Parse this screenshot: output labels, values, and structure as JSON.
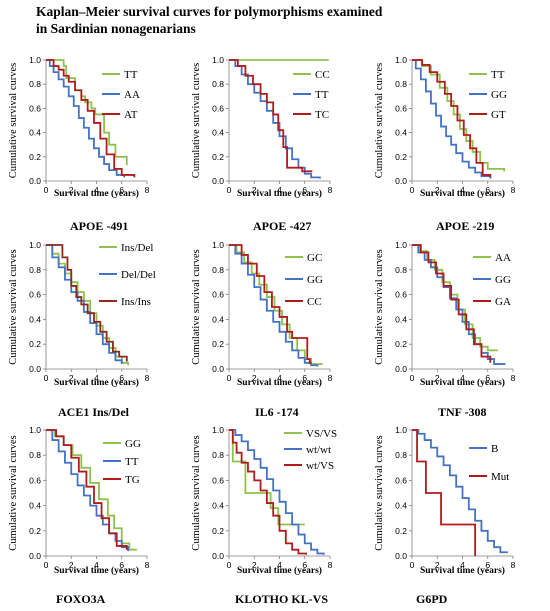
{
  "title_line1": "Kaplan–Meier survival curves for polymorphisms examined",
  "title_line2": "in Sardinian nonagenarians",
  "chart_data": [
    {
      "type": "line",
      "caption": "APOE -491",
      "xlabel": "Survival time (years)",
      "ylabel": "Cumulative survival curves",
      "xlim": [
        0,
        8
      ],
      "ylim": [
        0,
        1
      ],
      "xticks": [
        0,
        2,
        4,
        6,
        8
      ],
      "yticks": [
        0,
        0.2,
        0.4,
        0.6,
        0.8,
        1
      ],
      "series": [
        {
          "name": "TT",
          "color": "#8fc24c",
          "x": [
            0,
            1.4,
            1.6,
            2.3,
            2.8,
            3.1,
            3.6,
            3.9,
            4.6,
            5.0,
            5.5,
            6.4
          ],
          "y": [
            1,
            0.95,
            0.85,
            0.75,
            0.7,
            0.65,
            0.6,
            0.55,
            0.4,
            0.3,
            0.2,
            0.13
          ]
        },
        {
          "name": "AA",
          "color": "#4472c4",
          "x": [
            0,
            0.3,
            0.6,
            1.0,
            1.4,
            1.8,
            2.2,
            2.6,
            3.0,
            3.4,
            3.8,
            4.2,
            4.6,
            5.0,
            5.6,
            6.2
          ],
          "y": [
            1,
            0.95,
            0.9,
            0.84,
            0.78,
            0.7,
            0.62,
            0.52,
            0.44,
            0.35,
            0.27,
            0.2,
            0.14,
            0.09,
            0.05,
            0.03
          ]
        },
        {
          "name": "AT",
          "color": "#b01c1c",
          "x": [
            0,
            0.6,
            1.0,
            1.4,
            1.8,
            2.3,
            2.8,
            3.3,
            3.8,
            4.3,
            4.8,
            5.4,
            6.0,
            7.0
          ],
          "y": [
            1,
            0.95,
            0.92,
            0.87,
            0.82,
            0.75,
            0.67,
            0.58,
            0.48,
            0.35,
            0.22,
            0.1,
            0.05,
            0.03
          ]
        }
      ]
    },
    {
      "type": "line",
      "caption": "APOE -427",
      "xlabel": "Survival time (years)",
      "ylabel": "Cumulative survival curves",
      "xlim": [
        0,
        8
      ],
      "ylim": [
        0,
        1
      ],
      "xticks": [
        0,
        2,
        4,
        6,
        8
      ],
      "yticks": [
        0,
        0.2,
        0.4,
        0.6,
        0.8,
        1
      ],
      "series": [
        {
          "name": "CC",
          "color": "#8fc24c",
          "x": [
            0,
            7.9
          ],
          "y": [
            1,
            1
          ]
        },
        {
          "name": "TT",
          "color": "#4472c4",
          "x": [
            0,
            0.5,
            1.0,
            1.5,
            2.0,
            2.5,
            3.0,
            3.5,
            4.0,
            4.5,
            5.0,
            5.5,
            6.0,
            6.5,
            7.2
          ],
          "y": [
            1,
            0.95,
            0.88,
            0.8,
            0.73,
            0.66,
            0.58,
            0.48,
            0.37,
            0.27,
            0.18,
            0.11,
            0.06,
            0.03,
            0.02
          ]
        },
        {
          "name": "TC",
          "color": "#b01c1c",
          "x": [
            0,
            0.7,
            1.3,
            1.9,
            2.5,
            3.0,
            3.5,
            3.9,
            4.3,
            4.6,
            5.8,
            6.6
          ],
          "y": [
            1,
            0.95,
            0.87,
            0.8,
            0.72,
            0.65,
            0.55,
            0.42,
            0.28,
            0.11,
            0.08,
            0.08
          ]
        }
      ]
    },
    {
      "type": "line",
      "caption": "APOE -219",
      "xlabel": "Survival time (years)",
      "ylabel": "Cumulative survival curves",
      "xlim": [
        0,
        8
      ],
      "ylim": [
        0,
        1
      ],
      "xticks": [
        0,
        2,
        4,
        6,
        8
      ],
      "yticks": [
        0,
        0.2,
        0.4,
        0.6,
        0.8,
        1
      ],
      "series": [
        {
          "name": "TT",
          "color": "#8fc24c",
          "x": [
            0,
            0.8,
            1.5,
            2.2,
            2.8,
            3.3,
            3.8,
            4.3,
            4.8,
            5.4,
            6.0,
            7.3
          ],
          "y": [
            1,
            0.95,
            0.88,
            0.77,
            0.66,
            0.55,
            0.43,
            0.33,
            0.24,
            0.15,
            0.1,
            0.08
          ]
        },
        {
          "name": "GG",
          "color": "#4472c4",
          "x": [
            0,
            0.3,
            0.7,
            1.1,
            1.5,
            1.9,
            2.3,
            2.7,
            3.1,
            3.5,
            4.0,
            4.5,
            5.0,
            5.5,
            6.2
          ],
          "y": [
            1,
            0.93,
            0.84,
            0.74,
            0.64,
            0.54,
            0.45,
            0.37,
            0.3,
            0.23,
            0.16,
            0.11,
            0.07,
            0.04,
            0.02
          ]
        },
        {
          "name": "GT",
          "color": "#b01c1c",
          "x": [
            0,
            0.8,
            1.4,
            2.0,
            2.6,
            3.1,
            3.6,
            4.1,
            4.6,
            5.1,
            5.6,
            6.2
          ],
          "y": [
            1,
            0.96,
            0.9,
            0.82,
            0.72,
            0.62,
            0.5,
            0.38,
            0.27,
            0.15,
            0.05,
            0.03
          ]
        }
      ]
    },
    {
      "type": "line",
      "caption": "ACE1 Ins/Del",
      "xlabel": "Survival time (years)",
      "ylabel": "Cumulative survival curves",
      "xlim": [
        0,
        8
      ],
      "ylim": [
        0,
        1
      ],
      "xticks": [
        0,
        2,
        4,
        6,
        8
      ],
      "yticks": [
        0,
        0.2,
        0.4,
        0.6,
        0.8,
        1
      ],
      "series": [
        {
          "name": "Ins/Del",
          "color": "#8fc24c",
          "x": [
            0,
            0.5,
            1.0,
            1.5,
            2.0,
            2.5,
            3.0,
            3.5,
            4.0,
            4.5,
            5.0,
            5.5,
            6.0,
            6.5
          ],
          "y": [
            1,
            0.93,
            0.85,
            0.77,
            0.7,
            0.62,
            0.55,
            0.45,
            0.35,
            0.25,
            0.17,
            0.1,
            0.05,
            0.03
          ]
        },
        {
          "name": "Del/Del",
          "color": "#4472c4",
          "x": [
            0,
            0.5,
            1.0,
            1.5,
            2.0,
            2.5,
            3.0,
            3.5,
            4.0,
            4.5,
            5.0,
            5.5,
            6.0
          ],
          "y": [
            1,
            0.9,
            0.82,
            0.72,
            0.62,
            0.55,
            0.46,
            0.37,
            0.28,
            0.2,
            0.13,
            0.07,
            0.04
          ]
        },
        {
          "name": "Ins/Ins",
          "color": "#8b2b1b",
          "x": [
            0,
            0.9,
            1.3,
            1.7,
            2.0,
            2.4,
            2.8,
            3.3,
            3.8,
            4.3,
            4.8,
            5.3,
            5.8,
            6.4
          ],
          "y": [
            1,
            1,
            0.9,
            0.8,
            0.67,
            0.58,
            0.52,
            0.45,
            0.38,
            0.3,
            0.22,
            0.14,
            0.1,
            0.06
          ]
        }
      ]
    },
    {
      "type": "line",
      "caption": "IL6 -174",
      "xlabel": "Survival time (years)",
      "ylabel": "Cumulative survival curves",
      "xlim": [
        0,
        8
      ],
      "ylim": [
        0,
        1
      ],
      "xticks": [
        0,
        2,
        4,
        6,
        8
      ],
      "yticks": [
        0,
        0.2,
        0.4,
        0.6,
        0.8,
        1
      ],
      "series": [
        {
          "name": "GC",
          "color": "#8fc24c",
          "x": [
            0,
            0.6,
            1.2,
            1.8,
            2.4,
            3.0,
            3.6,
            4.2,
            4.8,
            5.4,
            6.0,
            6.5,
            7.4
          ],
          "y": [
            1,
            0.94,
            0.86,
            0.77,
            0.68,
            0.58,
            0.47,
            0.36,
            0.25,
            0.15,
            0.08,
            0.04,
            0.04
          ]
        },
        {
          "name": "GG",
          "color": "#4472c4",
          "x": [
            0,
            0.5,
            1.0,
            1.5,
            2.0,
            2.5,
            3.0,
            3.5,
            4.0,
            4.5,
            5.0,
            5.5,
            6.0,
            6.5,
            7.0
          ],
          "y": [
            1,
            0.93,
            0.85,
            0.76,
            0.66,
            0.56,
            0.47,
            0.38,
            0.3,
            0.22,
            0.15,
            0.09,
            0.05,
            0.03,
            0.02
          ]
        },
        {
          "name": "CC",
          "color": "#b01c1c",
          "x": [
            0,
            1.0,
            1.5,
            2.2,
            2.8,
            3.4,
            4.0,
            4.6,
            5.0,
            6.2,
            6.4
          ],
          "y": [
            1,
            0.92,
            0.85,
            0.75,
            0.62,
            0.5,
            0.42,
            0.3,
            0.25,
            0.08,
            0.04
          ]
        }
      ]
    },
    {
      "type": "line",
      "caption": "TNF -308",
      "xlabel": "Survival time (years)",
      "ylabel": "Cumulative survival curves",
      "xlim": [
        0,
        8
      ],
      "ylim": [
        0,
        1
      ],
      "xticks": [
        0,
        2,
        4,
        6,
        8
      ],
      "yticks": [
        0,
        0.2,
        0.4,
        0.6,
        0.8,
        1
      ],
      "series": [
        {
          "name": "AA",
          "color": "#8fc24c",
          "x": [
            0,
            0.6,
            1.2,
            1.8,
            2.4,
            3.0,
            3.6,
            4.2,
            4.8,
            5.4,
            6.0,
            6.8
          ],
          "y": [
            1,
            0.95,
            0.88,
            0.8,
            0.7,
            0.6,
            0.48,
            0.36,
            0.25,
            0.18,
            0.15,
            0.15
          ]
        },
        {
          "name": "GG",
          "color": "#4472c4",
          "x": [
            0,
            0.5,
            1.0,
            1.5,
            2.0,
            2.5,
            3.0,
            3.5,
            4.0,
            4.5,
            5.0,
            5.5,
            6.0,
            6.5,
            7.4
          ],
          "y": [
            1,
            0.94,
            0.88,
            0.82,
            0.74,
            0.66,
            0.57,
            0.48,
            0.38,
            0.28,
            0.2,
            0.13,
            0.08,
            0.04,
            0.04
          ]
        },
        {
          "name": "GA",
          "color": "#b01c1c",
          "x": [
            0,
            0.7,
            1.3,
            1.9,
            2.5,
            3.1,
            3.7,
            4.3,
            4.9,
            5.5,
            6.2
          ],
          "y": [
            1,
            0.94,
            0.86,
            0.77,
            0.67,
            0.56,
            0.44,
            0.32,
            0.2,
            0.1,
            0.05
          ]
        }
      ]
    },
    {
      "type": "line",
      "caption": "FOXO3A",
      "xlabel": "Survival time (years)",
      "ylabel": "Cumulative survival curves",
      "xlim": [
        0,
        8
      ],
      "ylim": [
        0,
        1
      ],
      "xticks": [
        0,
        2,
        4,
        6,
        8
      ],
      "yticks": [
        0,
        0.2,
        0.4,
        0.6,
        0.8,
        1
      ],
      "series": [
        {
          "name": "GG",
          "color": "#8fc24c",
          "x": [
            0,
            0.7,
            1.4,
            2.1,
            2.8,
            3.5,
            4.2,
            4.9,
            5.4,
            6.0,
            6.6,
            7.2
          ],
          "y": [
            1,
            0.95,
            0.88,
            0.8,
            0.7,
            0.58,
            0.45,
            0.32,
            0.22,
            0.1,
            0.05,
            0.05
          ]
        },
        {
          "name": "TT",
          "color": "#4472c4",
          "x": [
            0,
            0.5,
            1.0,
            1.5,
            2.0,
            2.5,
            3.0,
            3.5,
            4.0,
            4.5,
            5.0,
            5.5,
            6.0,
            6.5
          ],
          "y": [
            1,
            0.92,
            0.83,
            0.74,
            0.65,
            0.56,
            0.48,
            0.4,
            0.32,
            0.25,
            0.18,
            0.12,
            0.07,
            0.04
          ]
        },
        {
          "name": "TG",
          "color": "#b01c1c",
          "x": [
            0,
            0.8,
            1.4,
            2.0,
            2.6,
            3.2,
            3.8,
            4.4,
            5.0,
            5.6,
            6.4
          ],
          "y": [
            1,
            0.95,
            0.88,
            0.78,
            0.67,
            0.55,
            0.42,
            0.3,
            0.18,
            0.08,
            0.05
          ]
        }
      ]
    },
    {
      "type": "line",
      "caption": "KLOTHO KL-VS",
      "xlabel": "Survival time (years)",
      "ylabel": "Cumulative survival curves",
      "xlim": [
        0,
        8
      ],
      "ylim": [
        0,
        1
      ],
      "xticks": [
        0,
        2,
        4,
        6,
        8
      ],
      "yticks": [
        0,
        0.2,
        0.4,
        0.6,
        0.8,
        1
      ],
      "series": [
        {
          "name": "VS/VS",
          "color": "#8fc24c",
          "x": [
            0,
            0.3,
            1.3,
            3.3,
            3.9,
            4.5,
            6.0
          ],
          "y": [
            1,
            0.75,
            0.5,
            0.38,
            0.25,
            0.25,
            0.25
          ]
        },
        {
          "name": "wt/wt",
          "color": "#4472c4",
          "x": [
            0,
            0.5,
            1.0,
            1.5,
            2.0,
            2.5,
            3.0,
            3.5,
            4.0,
            4.5,
            5.0,
            5.5,
            6.0,
            6.5,
            7.0,
            7.5
          ],
          "y": [
            1,
            0.96,
            0.91,
            0.84,
            0.77,
            0.7,
            0.61,
            0.52,
            0.43,
            0.34,
            0.25,
            0.17,
            0.1,
            0.05,
            0.02,
            0.01
          ]
        },
        {
          "name": "wt/VS",
          "color": "#b01c1c",
          "x": [
            0,
            0.3,
            0.6,
            1.0,
            1.5,
            2.0,
            2.5,
            3.0,
            3.5,
            4.0,
            4.5,
            5.0,
            5.5,
            6.1
          ],
          "y": [
            1,
            0.9,
            0.82,
            0.74,
            0.67,
            0.6,
            0.52,
            0.42,
            0.32,
            0.2,
            0.1,
            0.05,
            0.02,
            0.01
          ]
        }
      ]
    },
    {
      "type": "line",
      "caption": "G6PD",
      "xlabel": "Survival time (years)",
      "ylabel": "Cumulative survival curves",
      "xlim": [
        0,
        8
      ],
      "ylim": [
        0,
        1
      ],
      "xticks": [
        0,
        2,
        4,
        6,
        8
      ],
      "yticks": [
        0,
        0.2,
        0.4,
        0.6,
        0.8,
        1
      ],
      "series": [
        {
          "name": "B",
          "color": "#4472c4",
          "x": [
            0,
            0.5,
            1.0,
            1.5,
            2.0,
            2.5,
            3.0,
            3.5,
            4.0,
            4.5,
            5.0,
            5.5,
            6.0,
            6.5,
            7.0,
            7.6
          ],
          "y": [
            1,
            0.97,
            0.92,
            0.86,
            0.79,
            0.72,
            0.64,
            0.55,
            0.46,
            0.37,
            0.28,
            0.2,
            0.12,
            0.07,
            0.03,
            0.03
          ]
        },
        {
          "name": "Mut",
          "color": "#b01c1c",
          "x": [
            0,
            0.4,
            1.1,
            2.3,
            4.7,
            5.0
          ],
          "y": [
            1,
            0.75,
            0.5,
            0.25,
            0.25,
            0
          ]
        }
      ]
    }
  ]
}
